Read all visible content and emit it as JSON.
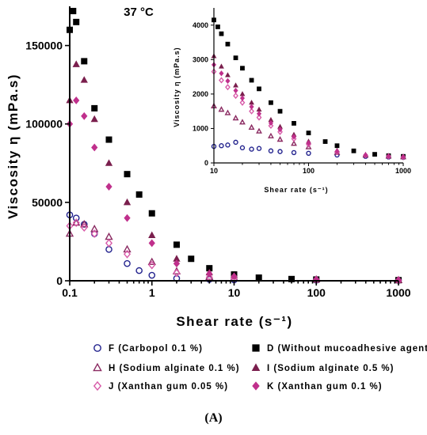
{
  "panel_label": "(A)",
  "chart_data": [
    {
      "type": "scatter",
      "title": "37 °C",
      "xlabel": "Shear rate (s⁻¹)",
      "ylabel": "Viscosity η (mPa.s)",
      "xscale": "log",
      "xlim": [
        0.1,
        1000
      ],
      "ylim": [
        0,
        175000
      ],
      "xticks": [
        "0.1",
        "1",
        "10",
        "100",
        "1000"
      ],
      "yticks": [
        "0",
        "50000",
        "100000",
        "150000"
      ],
      "legend_position": "bottom",
      "series": [
        {
          "name": "F (Carbopol 0.1 %)",
          "marker": "circle-open",
          "color": "#23238e",
          "x": [
            0.1,
            0.12,
            0.15,
            0.2,
            0.3,
            0.5,
            0.7,
            1,
            2,
            5,
            10,
            100,
            1000
          ],
          "y": [
            42000,
            40000,
            36000,
            30000,
            20000,
            11000,
            6500,
            3500,
            1500,
            900,
            600,
            400,
            300
          ]
        },
        {
          "name": "D (Without mucoadhesive agent)",
          "marker": "square-filled",
          "color": "#000000",
          "x": [
            0.1,
            0.11,
            0.12,
            0.15,
            0.2,
            0.3,
            0.5,
            0.7,
            1,
            2,
            3,
            5,
            10,
            20,
            50,
            100,
            1000
          ],
          "y": [
            160000,
            172000,
            165000,
            140000,
            110000,
            90000,
            68000,
            55000,
            43000,
            23000,
            14000,
            8000,
            4000,
            2000,
            1100,
            800,
            400
          ]
        },
        {
          "name": "H (Sodium alginate 0.1 %)",
          "marker": "triangle-open",
          "color": "#8b2b62",
          "x": [
            0.1,
            0.12,
            0.15,
            0.2,
            0.3,
            0.5,
            1,
            2,
            5,
            10,
            100,
            1000
          ],
          "y": [
            30000,
            37000,
            36000,
            33000,
            28000,
            20000,
            12000,
            6000,
            2500,
            1600,
            800,
            400
          ]
        },
        {
          "name": "I (Sodium alginate 0.5 %)",
          "marker": "triangle-filled",
          "color": "#7a1f4d",
          "x": [
            0.1,
            0.12,
            0.15,
            0.2,
            0.3,
            0.5,
            1,
            2,
            5,
            10,
            100,
            1000
          ],
          "y": [
            115000,
            138000,
            128000,
            103000,
            75000,
            50000,
            29000,
            14000,
            5200,
            3000,
            900,
            400
          ]
        },
        {
          "name": "J (Xanthan gum 0.05 %)",
          "marker": "diamond-open",
          "color": "#d85aa8",
          "x": [
            0.1,
            0.12,
            0.15,
            0.2,
            0.3,
            0.5,
            1,
            2,
            5,
            10,
            100,
            1000
          ],
          "y": [
            35000,
            37000,
            34000,
            30000,
            24000,
            17000,
            10000,
            5000,
            2200,
            1400,
            600,
            300
          ]
        },
        {
          "name": "K (Xanthan gum 0.1 %)",
          "marker": "diamond-filled",
          "color": "#c0308c",
          "x": [
            0.1,
            0.12,
            0.15,
            0.2,
            0.3,
            0.5,
            1,
            2,
            5,
            10,
            100,
            1000
          ],
          "y": [
            100000,
            115000,
            105000,
            85000,
            60000,
            40000,
            24000,
            11000,
            4500,
            2800,
            800,
            400
          ]
        }
      ]
    },
    {
      "type": "scatter",
      "title": "",
      "xlabel": "Shear rate (s⁻¹)",
      "ylabel": "Viscosity η (mPa.s)",
      "xscale": "log",
      "xlim": [
        10,
        1000
      ],
      "ylim": [
        0,
        4500
      ],
      "xticks": [
        "10",
        "100",
        "1000"
      ],
      "yticks": [
        "0",
        "1000",
        "2000",
        "3000",
        "4000"
      ],
      "series": [
        {
          "name": "F (Carbopol 0.1 %)",
          "marker": "circle-open",
          "color": "#23238e",
          "x": [
            10,
            12,
            14,
            17,
            20,
            25,
            30,
            40,
            50,
            70,
            100,
            200,
            400,
            700,
            1000
          ],
          "y": [
            480,
            500,
            520,
            600,
            440,
            400,
            420,
            350,
            330,
            300,
            280,
            230,
            190,
            170,
            160
          ]
        },
        {
          "name": "D (Without mucoadhesive agent)",
          "marker": "square-filled",
          "color": "#000000",
          "x": [
            10,
            11,
            12,
            14,
            17,
            20,
            25,
            30,
            40,
            50,
            70,
            100,
            150,
            200,
            300,
            500,
            700,
            1000
          ],
          "y": [
            4150,
            3950,
            3750,
            3450,
            3050,
            2750,
            2400,
            2150,
            1750,
            1500,
            1150,
            870,
            620,
            500,
            350,
            250,
            210,
            190
          ]
        },
        {
          "name": "H (Sodium alginate 0.1 %)",
          "marker": "triangle-open",
          "color": "#8b2b62",
          "x": [
            10,
            12,
            14,
            17,
            20,
            25,
            30,
            40,
            50,
            70,
            100,
            200,
            400,
            700,
            1000
          ],
          "y": [
            1650,
            1550,
            1450,
            1300,
            1180,
            1030,
            920,
            780,
            680,
            560,
            460,
            300,
            220,
            190,
            170
          ]
        },
        {
          "name": "I (Sodium alginate 0.5 %)",
          "marker": "triangle-filled",
          "color": "#7a1f4d",
          "x": [
            10,
            12,
            14,
            17,
            20,
            25,
            30,
            40,
            50,
            70,
            100,
            200,
            400,
            700,
            1000
          ],
          "y": [
            3100,
            2800,
            2550,
            2250,
            2000,
            1750,
            1550,
            1250,
            1050,
            820,
            620,
            360,
            240,
            200,
            180
          ]
        },
        {
          "name": "J (Xanthan gum 0.05 %)",
          "marker": "diamond-open",
          "color": "#d85aa8",
          "x": [
            10,
            12,
            14,
            17,
            20,
            25,
            30,
            40,
            50,
            70,
            100,
            200,
            400,
            700,
            1000
          ],
          "y": [
            2650,
            2400,
            2200,
            1950,
            1750,
            1500,
            1320,
            1080,
            900,
            700,
            540,
            320,
            220,
            190,
            170
          ]
        },
        {
          "name": "K (Xanthan gum 0.1 %)",
          "marker": "diamond-filled",
          "color": "#c0308c",
          "x": [
            10,
            12,
            14,
            17,
            20,
            25,
            30,
            40,
            50,
            70,
            100,
            200,
            400,
            700,
            1000
          ],
          "y": [
            2850,
            2600,
            2380,
            2100,
            1880,
            1630,
            1430,
            1160,
            970,
            760,
            580,
            340,
            230,
            195,
            175
          ]
        }
      ]
    }
  ]
}
